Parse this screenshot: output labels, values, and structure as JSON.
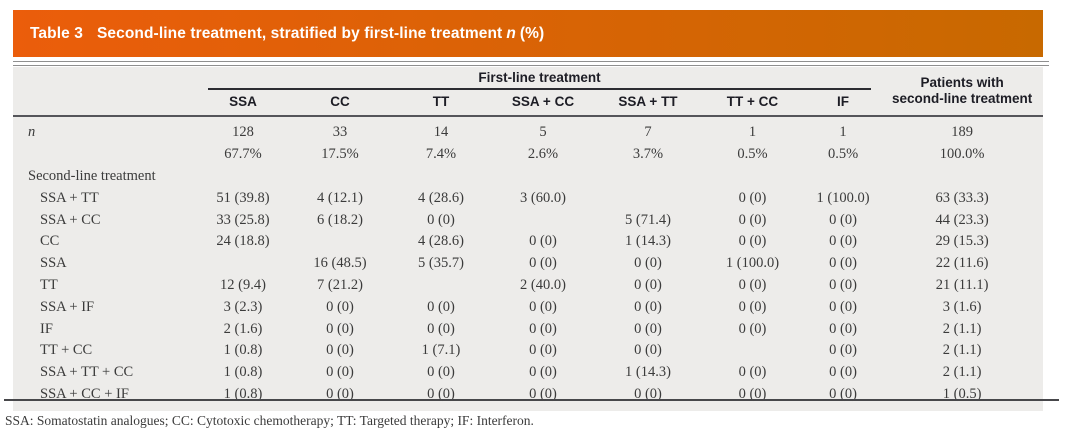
{
  "title_bar": {
    "label": "Table 3",
    "title": "Second-line treatment, stratified by first-line treatment",
    "suffix_italic": "n",
    "suffix": "(%)",
    "bg_left": "#eb5d0b",
    "bg_right": "#c86900"
  },
  "table": {
    "group_header": "First-line treatment",
    "columns": [
      "SSA",
      "CC",
      "TT",
      "SSA + CC",
      "SSA + TT",
      "TT + CC",
      "IF"
    ],
    "last_column_header": [
      "Patients with",
      "second-line treatment"
    ],
    "rows": [
      {
        "label": "n",
        "italic": true,
        "indent": false,
        "section": false,
        "cells": [
          "128",
          "33",
          "14",
          "5",
          "7",
          "1",
          "1",
          "189"
        ]
      },
      {
        "label": "",
        "italic": false,
        "indent": false,
        "section": false,
        "cells": [
          "67.7%",
          "17.5%",
          "7.4%",
          "2.6%",
          "3.7%",
          "0.5%",
          "0.5%",
          "100.0%"
        ]
      },
      {
        "label": "Second-line treatment",
        "italic": false,
        "indent": false,
        "section": true,
        "cells": [
          "",
          "",
          "",
          "",
          "",
          "",
          "",
          ""
        ]
      },
      {
        "label": "SSA + TT",
        "italic": false,
        "indent": true,
        "section": false,
        "cells": [
          "51 (39.8)",
          "4 (12.1)",
          "4 (28.6)",
          "3 (60.0)",
          "",
          "0 (0)",
          "1 (100.0)",
          "63 (33.3)"
        ]
      },
      {
        "label": "SSA + CC",
        "italic": false,
        "indent": true,
        "section": false,
        "cells": [
          "33 (25.8)",
          "6 (18.2)",
          "0 (0)",
          "",
          "5 (71.4)",
          "0 (0)",
          "0 (0)",
          "44 (23.3)"
        ]
      },
      {
        "label": "CC",
        "italic": false,
        "indent": true,
        "section": false,
        "cells": [
          "24 (18.8)",
          "",
          "4 (28.6)",
          "0 (0)",
          "1 (14.3)",
          "0 (0)",
          "0 (0)",
          "29 (15.3)"
        ]
      },
      {
        "label": "SSA",
        "italic": false,
        "indent": true,
        "section": false,
        "cells": [
          "",
          "16 (48.5)",
          "5 (35.7)",
          "0 (0)",
          "0 (0)",
          "1 (100.0)",
          "0 (0)",
          "22 (11.6)"
        ]
      },
      {
        "label": "TT",
        "italic": false,
        "indent": true,
        "section": false,
        "cells": [
          "12 (9.4)",
          "7 (21.2)",
          "",
          "2 (40.0)",
          "0 (0)",
          "0 (0)",
          "0 (0)",
          "21 (11.1)"
        ]
      },
      {
        "label": "SSA + IF",
        "italic": false,
        "indent": true,
        "section": false,
        "cells": [
          "3 (2.3)",
          "0 (0)",
          "0 (0)",
          "0 (0)",
          "0 (0)",
          "0 (0)",
          "0 (0)",
          "3 (1.6)"
        ]
      },
      {
        "label": "IF",
        "italic": false,
        "indent": true,
        "section": false,
        "cells": [
          "2 (1.6)",
          "0 (0)",
          "0 (0)",
          "0 (0)",
          "0 (0)",
          "0 (0)",
          "0 (0)",
          "2 (1.1)"
        ]
      },
      {
        "label": "TT + CC",
        "italic": false,
        "indent": true,
        "section": false,
        "cells": [
          "1 (0.8)",
          "0 (0)",
          "1 (7.1)",
          "0 (0)",
          "0 (0)",
          "",
          "0 (0)",
          "2 (1.1)"
        ]
      },
      {
        "label": "SSA + TT + CC",
        "italic": false,
        "indent": true,
        "section": false,
        "cells": [
          "1 (0.8)",
          "0 (0)",
          "0 (0)",
          "0 (0)",
          "1 (14.3)",
          "0 (0)",
          "0 (0)",
          "2 (1.1)"
        ]
      },
      {
        "label": "SSA + CC + IF",
        "italic": false,
        "indent": true,
        "section": false,
        "cells": [
          "1 (0.8)",
          "0 (0)",
          "0 (0)",
          "0 (0)",
          "0 (0)",
          "0 (0)",
          "0 (0)",
          "1 (0.5)"
        ]
      }
    ]
  },
  "footnote": "SSA: Somatostatin analogues; CC: Cytotoxic chemotherapy; TT: Targeted therapy; IF: Interferon."
}
